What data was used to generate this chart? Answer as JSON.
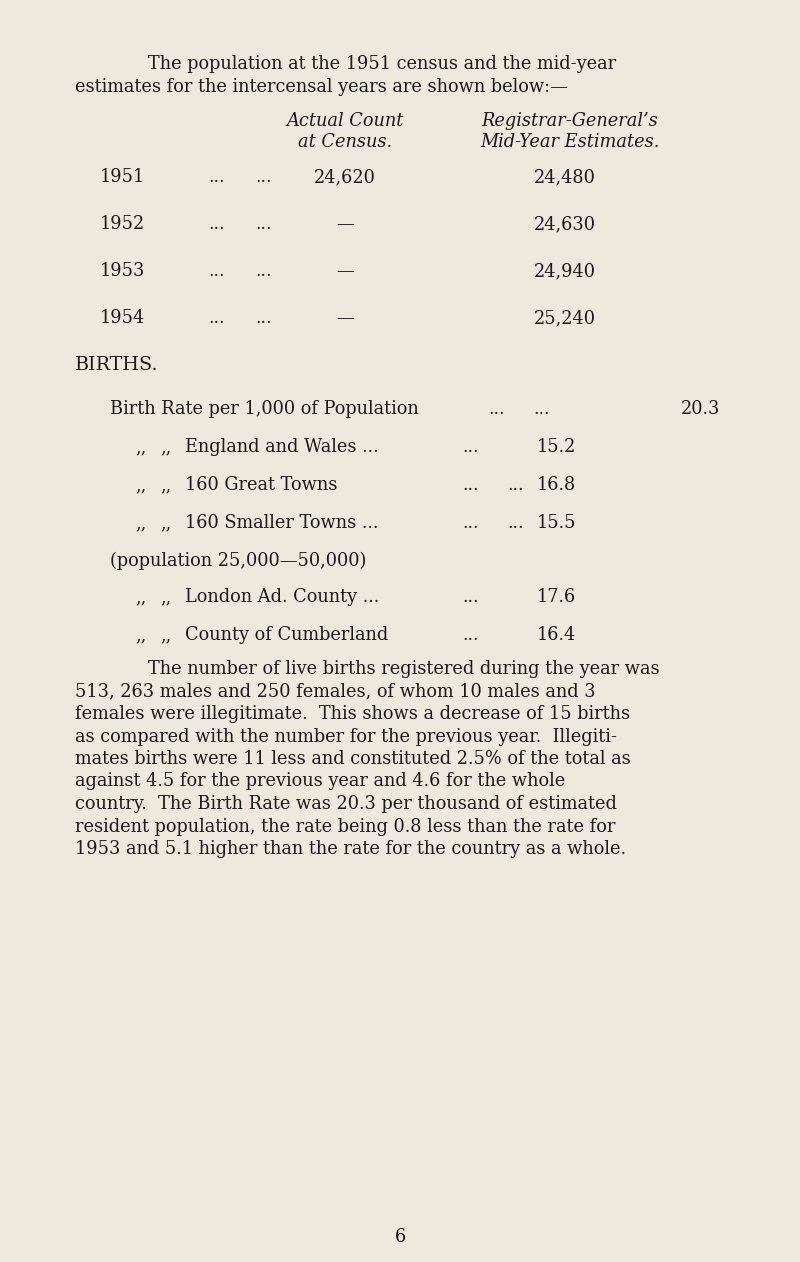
{
  "bg_color": "#ede9dc",
  "text_color": "#1a1a1a",
  "page_number": "6",
  "intro_line1": "The population at the 1951 census and the mid-year",
  "intro_line2": "estimates for the intercensal years are shown below:—",
  "col_header1_line1": "Actual Count",
  "col_header1_line2": "at Census.",
  "col_header2_line1": "Registrar-General’s",
  "col_header2_line2": "Mid-Year Estimates.",
  "table_rows": [
    {
      "year": "1951",
      "dots1": "...",
      "dots2": "...",
      "census": "24,620",
      "estimate": "24,480"
    },
    {
      "year": "1952",
      "dots1": "...",
      "dots2": "...",
      "census": "—",
      "estimate": "24,630"
    },
    {
      "year": "1953",
      "dots1": "...",
      "dots2": "...",
      "census": "—",
      "estimate": "24,940"
    },
    {
      "year": "1954",
      "dots1": "...",
      "dots2": "...",
      "census": "—",
      "estimate": "25,240"
    }
  ],
  "births_heading": "BIRTHS.",
  "birth_rate_lines": [
    {
      "indent1": "",
      "indent2": "",
      "label": "Birth Rate per 1,000 of Population",
      "dots1": "...",
      "dots2": "...",
      "value": "20.3",
      "wide": true
    },
    {
      "indent1": ",,",
      "indent2": ",,",
      "label": "England and Wales ...",
      "dots1": "...",
      "dots2": "",
      "value": "15.2",
      "wide": false
    },
    {
      "indent1": ",,",
      "indent2": ",,",
      "label": "160 Great Towns",
      "dots1": "...",
      "dots2": "...",
      "value": "16.8",
      "wide": false
    },
    {
      "indent1": ",,",
      "indent2": ",,",
      "label": "160 Smaller Towns ...",
      "dots1": "...",
      "dots2": "...",
      "value": "15.5",
      "wide": false
    },
    {
      "indent1": "",
      "indent2": "",
      "label": "(population 25,000—50,000)",
      "dots1": "",
      "dots2": "",
      "value": "",
      "wide": false
    },
    {
      "indent1": ",,",
      "indent2": ",,",
      "label": "London Ad. County ...",
      "dots1": "...",
      "dots2": "",
      "value": "17.6",
      "wide": false
    },
    {
      "indent1": ",,",
      "indent2": ",,",
      "label": "County of Cumberland",
      "dots1": "...",
      "dots2": "",
      "value": "16.4",
      "wide": false
    }
  ],
  "para_indent": "        The number of live births registered during the year was",
  "para_lines": [
    "        The number of live births registered during the year was",
    "513, 263 males and 250 females, of whom 10 males and 3",
    "females were illegitimate.  This shows a decrease of 15 births",
    "as compared with the number for the previous year.  Illegiti-",
    "mates births were 11 less and constituted 2.5% of the total as",
    "against 4.5 for the previous year and 4.6 for the whole",
    "country.  The Birth Rate was 20.3 per thousand of estimated",
    "resident population, the rate being 0.8 less than the rate for",
    "1953 and 5.1 higher than the rate for the country as a whole."
  ]
}
